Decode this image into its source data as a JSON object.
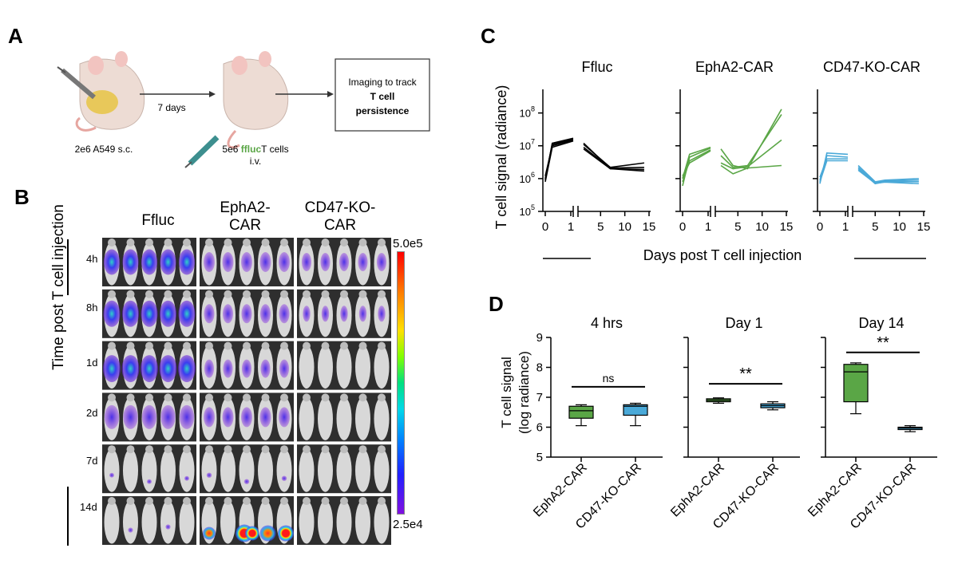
{
  "panels": {
    "a": "A",
    "b": "B",
    "c": "C",
    "d": "D"
  },
  "panel_a": {
    "tumor_label": "2e6 A549 s.c.",
    "arrow1_label": "7 days",
    "tcell_dose": "5e6",
    "tcell_fluc": "ffluc",
    "tcell_cells": "T cells",
    "tcell_route": "i.v.",
    "imaging_line1": "Imaging to track",
    "imaging_line2": "T cell",
    "imaging_line3": "persistence",
    "fluc_color": "#5aa646"
  },
  "panel_b": {
    "groups": [
      {
        "line1": "Ffluc",
        "line2": ""
      },
      {
        "line1": "EphA2-",
        "line2": "CAR"
      },
      {
        "line1": "CD47-KO-",
        "line2": "CAR"
      }
    ],
    "timepoints": [
      "4h",
      "8h",
      "1d",
      "2d",
      "7d",
      "14d"
    ],
    "y_label": "Time post T cell injection",
    "scale_max": "5.0e5",
    "scale_min": "2.5e4"
  },
  "chart_data": [
    {
      "type": "line",
      "title": "Ffluc",
      "xlabel": "Days post T cell injection",
      "ylabel": "T cell signal (radiance)",
      "yscale": "log",
      "ylim": [
        100000,
        300000000
      ],
      "ytick_labels": [
        "10^5",
        "10^6",
        "10^7",
        "10^8"
      ],
      "xticks_left": [
        "0",
        "1"
      ],
      "xticks_right": [
        "5",
        "10",
        "15"
      ],
      "color": "#000000",
      "series": [
        {
          "name": "m1",
          "x": [
            0,
            0.25,
            1,
            1.5,
            7,
            14
          ],
          "y": [
            900000,
            12000000,
            17000000,
            11000000,
            2200000,
            3000000
          ]
        },
        {
          "name": "m2",
          "x": [
            0,
            0.25,
            1,
            1.5,
            7,
            14
          ],
          "y": [
            1200000,
            10000000,
            15000000,
            9000000,
            2100000,
            2200000
          ]
        },
        {
          "name": "m3",
          "x": [
            0,
            0.25,
            1,
            1.5,
            7,
            14
          ],
          "y": [
            800000,
            9000000,
            14000000,
            12000000,
            2000000,
            1900000
          ]
        },
        {
          "name": "m4",
          "x": [
            0,
            0.25,
            1,
            1.5,
            7,
            14
          ],
          "y": [
            1000000,
            11000000,
            16000000,
            8000000,
            2000000,
            1700000
          ]
        }
      ]
    },
    {
      "type": "line",
      "title": "EphA2-CAR",
      "yscale": "log",
      "ylim": [
        100000,
        300000000
      ],
      "xticks_left": [
        "0",
        "1"
      ],
      "xticks_right": [
        "5",
        "10",
        "15"
      ],
      "color": "#5aa646",
      "series": [
        {
          "name": "m1",
          "x": [
            0,
            0.25,
            1,
            1.5,
            4,
            7,
            14
          ],
          "y": [
            600000,
            4500000,
            8500000,
            8000000,
            2500000,
            2000000,
            130000000
          ]
        },
        {
          "name": "m2",
          "x": [
            0,
            0.25,
            1,
            1.5,
            4,
            7,
            14
          ],
          "y": [
            1000000,
            5500000,
            9000000,
            5000000,
            2200000,
            2500000,
            90000000
          ]
        },
        {
          "name": "m3",
          "x": [
            0,
            0.25,
            1,
            1.5,
            4,
            7,
            14
          ],
          "y": [
            800000,
            3500000,
            7500000,
            3000000,
            2000000,
            2300000,
            15000000
          ]
        },
        {
          "name": "m4",
          "x": [
            0,
            0.25,
            1,
            1.5,
            4,
            7,
            14
          ],
          "y": [
            1200000,
            3000000,
            7000000,
            2500000,
            1400000,
            2100000,
            2500000
          ]
        }
      ]
    },
    {
      "type": "line",
      "title": "CD47-KO-CAR",
      "yscale": "log",
      "ylim": [
        100000,
        300000000
      ],
      "xticks_left": [
        "0",
        "1"
      ],
      "xticks_right": [
        "5",
        "10",
        "15"
      ],
      "color": "#4aa9d8",
      "series": [
        {
          "name": "m1",
          "x": [
            0,
            0.25,
            1,
            1.5,
            5,
            7,
            14
          ],
          "y": [
            700000,
            6000000,
            5500000,
            2500000,
            800000,
            900000,
            1000000
          ]
        },
        {
          "name": "m2",
          "x": [
            0,
            0.25,
            1,
            1.5,
            5,
            7,
            14
          ],
          "y": [
            900000,
            5000000,
            4500000,
            2200000,
            750000,
            850000,
            900000
          ]
        },
        {
          "name": "m3",
          "x": [
            0,
            0.25,
            1,
            1.5,
            5,
            7,
            14
          ],
          "y": [
            1100000,
            4000000,
            4000000,
            2000000,
            700000,
            800000,
            800000
          ]
        },
        {
          "name": "m4",
          "x": [
            0,
            0.25,
            1,
            1.5,
            5,
            7,
            14
          ],
          "y": [
            800000,
            3500000,
            3500000,
            1800000,
            720000,
            780000,
            700000
          ]
        }
      ]
    },
    {
      "type": "box",
      "title": "4 hrs",
      "ylabel_line1": "T cell signal",
      "ylabel_line2": "(log radiance)",
      "ylim": [
        5,
        9
      ],
      "yticks": [
        "5",
        "6",
        "7",
        "8",
        "9"
      ],
      "categories": [
        "EphA2-CAR",
        "CD47-KO-CAR"
      ],
      "boxes": [
        {
          "name": "EphA2-CAR",
          "min": 6.05,
          "q1": 6.3,
          "median": 6.55,
          "q3": 6.7,
          "max": 6.75,
          "color": "#5aa646"
        },
        {
          "name": "CD47-KO-CAR",
          "min": 6.05,
          "q1": 6.4,
          "median": 6.7,
          "q3": 6.75,
          "max": 6.8,
          "color": "#4aa9d8"
        }
      ],
      "significance": "ns"
    },
    {
      "type": "box",
      "title": "Day 1",
      "ylim": [
        5,
        9
      ],
      "categories": [
        "EphA2-CAR",
        "CD47-KO-CAR"
      ],
      "boxes": [
        {
          "name": "EphA2-CAR",
          "min": 6.8,
          "q1": 6.85,
          "median": 6.9,
          "q3": 6.95,
          "max": 6.98,
          "color": "#5aa646"
        },
        {
          "name": "CD47-KO-CAR",
          "min": 6.58,
          "q1": 6.65,
          "median": 6.72,
          "q3": 6.78,
          "max": 6.85,
          "color": "#4aa9d8"
        }
      ],
      "significance": "**"
    },
    {
      "type": "box",
      "title": "Day 14",
      "ylim": [
        5,
        9
      ],
      "categories": [
        "EphA2-CAR",
        "CD47-KO-CAR"
      ],
      "boxes": [
        {
          "name": "EphA2-CAR",
          "min": 6.45,
          "q1": 6.85,
          "median": 7.85,
          "q3": 8.1,
          "max": 8.15,
          "color": "#5aa646"
        },
        {
          "name": "CD47-KO-CAR",
          "min": 5.85,
          "q1": 5.92,
          "median": 5.97,
          "q3": 6.0,
          "max": 6.05,
          "color": "#4aa9d8"
        }
      ],
      "significance": "**"
    }
  ]
}
